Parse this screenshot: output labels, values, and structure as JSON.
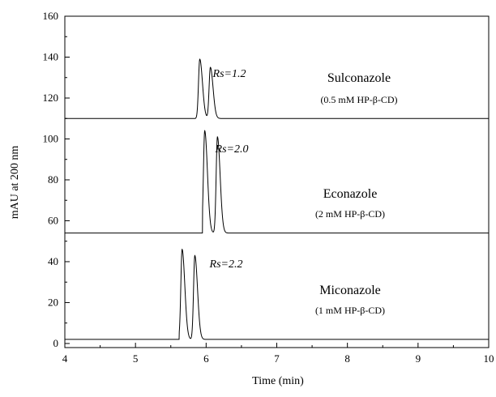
{
  "chart_data": {
    "type": "line",
    "title": "",
    "xlabel": "Time (min)",
    "ylabel": "mAU at 200 nm",
    "xlim": [
      4,
      10
    ],
    "ylim": [
      -2,
      160
    ],
    "xticks": [
      4,
      5,
      6,
      7,
      8,
      9,
      10
    ],
    "yticks": [
      0,
      20,
      40,
      60,
      80,
      100,
      120,
      140,
      160
    ],
    "grid": false,
    "series": [
      {
        "name": "Sulconazole",
        "baseline": 110,
        "peaks": [
          {
            "t": 5.91,
            "height": 139
          },
          {
            "t": 6.06,
            "height": 135
          }
        ],
        "start": 5.85
      },
      {
        "name": "Econazole",
        "baseline": 54,
        "peaks": [
          {
            "t": 5.98,
            "height": 104
          },
          {
            "t": 6.16,
            "height": 101
          }
        ],
        "start": 5.95
      },
      {
        "name": "Miconazole",
        "baseline": 2,
        "peaks": [
          {
            "t": 5.66,
            "height": 46
          },
          {
            "t": 5.84,
            "height": 43
          }
        ],
        "start": 5.62
      }
    ],
    "annotations": [
      {
        "name": "Sulconazole",
        "condition": "(0.5 mM HP-β-CD)",
        "rs": "Rs=1.2"
      },
      {
        "name": "Econazole",
        "condition": "(2 mM HP-β-CD)",
        "rs": "Rs=2.0"
      },
      {
        "name": "Miconazole",
        "condition": "(1 mM HP-β-CD)",
        "rs": "Rs=2.2"
      }
    ]
  }
}
